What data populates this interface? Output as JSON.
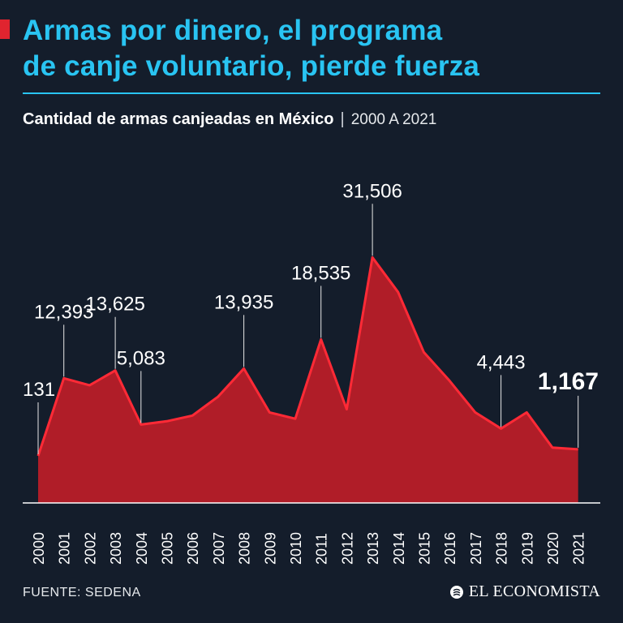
{
  "header": {
    "title_line1": "Armas por dinero, el programa",
    "title_line2": "de canje voluntario, pierde fuerza"
  },
  "subtitle": {
    "main": "Cantidad de armas canjeadas en México",
    "separator": "|",
    "range": "2000 A 2021"
  },
  "footer": {
    "source": "FUENTE: SEDENA",
    "brand": "EL ECONOMISTA"
  },
  "colors": {
    "background": "#141d2b",
    "title": "#29c4f2",
    "area_fill": "#b01d28",
    "area_stroke": "#ff2a36"
  },
  "chart_data": {
    "type": "area",
    "title": "Cantidad de armas canjeadas en México",
    "x": [
      "2000",
      "2001",
      "2002",
      "2003",
      "2004",
      "2005",
      "2006",
      "2007",
      "2008",
      "2009",
      "2010",
      "2011",
      "2012",
      "2013",
      "2014",
      "2015",
      "2016",
      "2017",
      "2018",
      "2019",
      "2020",
      "2021"
    ],
    "values": [
      131,
      12393,
      11300,
      13625,
      5083,
      5600,
      6500,
      9500,
      13935,
      7000,
      6000,
      18535,
      7500,
      31506,
      26000,
      16500,
      12000,
      7000,
      4443,
      7000,
      1450,
      1167
    ],
    "ylim": [
      -15000,
      35000
    ],
    "labels": [
      {
        "index": 0,
        "text": "131",
        "bold": false
      },
      {
        "index": 1,
        "text": "12,393",
        "bold": false
      },
      {
        "index": 3,
        "text": "13,625",
        "bold": false
      },
      {
        "index": 4,
        "text": "5,083",
        "bold": false
      },
      {
        "index": 8,
        "text": "13,935",
        "bold": false
      },
      {
        "index": 11,
        "text": "18,535",
        "bold": false
      },
      {
        "index": 13,
        "text": "31,506",
        "bold": false
      },
      {
        "index": 18,
        "text": "4,443",
        "bold": false
      },
      {
        "index": 21,
        "text": "1,167",
        "bold": true
      }
    ],
    "xlabel": "",
    "ylabel": "",
    "grid": false
  }
}
